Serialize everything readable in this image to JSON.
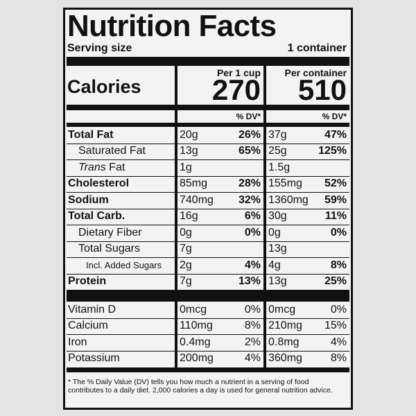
{
  "title": "Nutrition Facts",
  "serving": {
    "label": "Serving size",
    "value": "1 container"
  },
  "calories_label": "Calories",
  "columns": [
    {
      "header": "Per 1 cup",
      "calories": 270,
      "dv_header": "% DV*"
    },
    {
      "header": "Per container",
      "calories": 510,
      "dv_header": "% DV*"
    }
  ],
  "nutrients": [
    {
      "name": "Total Fat",
      "bold": true,
      "indent": 0,
      "values": [
        [
          "20g",
          "26%"
        ],
        [
          "37g",
          "47%"
        ]
      ]
    },
    {
      "name": "Saturated Fat",
      "bold": false,
      "indent": 1,
      "values": [
        [
          "13g",
          "65%"
        ],
        [
          "25g",
          "125%"
        ]
      ]
    },
    {
      "name_prefix": "Trans",
      "name": "Fat",
      "bold": false,
      "indent": 1,
      "values": [
        [
          "1g",
          null
        ],
        [
          "1.5g",
          null
        ]
      ]
    },
    {
      "name": "Cholesterol",
      "bold": true,
      "indent": 0,
      "values": [
        [
          "85mg",
          "28%"
        ],
        [
          "155mg",
          "52%"
        ]
      ]
    },
    {
      "name": "Sodium",
      "bold": true,
      "indent": 0,
      "values": [
        [
          "740mg",
          "32%"
        ],
        [
          "1360mg",
          "59%"
        ]
      ]
    },
    {
      "name": "Total Carb.",
      "bold": true,
      "indent": 0,
      "values": [
        [
          "16g",
          "6%"
        ],
        [
          "30g",
          "11%"
        ]
      ]
    },
    {
      "name": "Dietary Fiber",
      "bold": false,
      "indent": 1,
      "values": [
        [
          "0g",
          "0%"
        ],
        [
          "0g",
          "0%"
        ]
      ]
    },
    {
      "name": "Total Sugars",
      "bold": false,
      "indent": 1,
      "values": [
        [
          "7g",
          null
        ],
        [
          "13g",
          null
        ]
      ]
    },
    {
      "name": "Incl. Added Sugars",
      "bold": false,
      "indent": 2,
      "values": [
        [
          "2g",
          "4%"
        ],
        [
          "4g",
          "8%"
        ]
      ]
    },
    {
      "name": "Protein",
      "bold": true,
      "indent": 0,
      "values": [
        [
          "7g",
          "13%"
        ],
        [
          "13g",
          "25%"
        ]
      ]
    }
  ],
  "vitamins": [
    {
      "name": "Vitamin D",
      "values": [
        [
          "0mcg",
          "0%"
        ],
        [
          "0mcg",
          "0%"
        ]
      ]
    },
    {
      "name": "Calcium",
      "values": [
        [
          "110mg",
          "8%"
        ],
        [
          "210mg",
          "15%"
        ]
      ]
    },
    {
      "name": "Iron",
      "values": [
        [
          "0.4mg",
          "2%"
        ],
        [
          "0.8mg",
          "4%"
        ]
      ]
    },
    {
      "name": "Potassium",
      "values": [
        [
          "200mg",
          "4%"
        ],
        [
          "360mg",
          "8%"
        ]
      ]
    }
  ],
  "footnote": "* The % Daily Value (DV) tells you how much a nutrient in a serving of food contributes to a daily diet. 2,000 calories a day is used for general nutrition advice."
}
